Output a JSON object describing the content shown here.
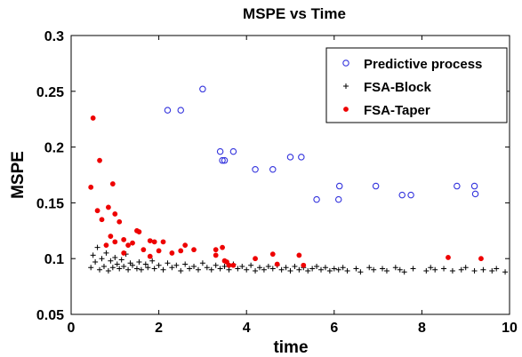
{
  "chart_data": {
    "type": "scatter",
    "title": "MSPE vs Time",
    "xlabel": "time",
    "ylabel": "MSPE",
    "xlim": [
      0,
      10
    ],
    "ylim": [
      0.05,
      0.3
    ],
    "xticks": [
      "0",
      "2",
      "4",
      "6",
      "8",
      "10"
    ],
    "yticks": [
      "0.05",
      "0.1",
      "0.15",
      "0.2",
      "0.25",
      "0.3"
    ],
    "grid": false,
    "legend_position": "top-right",
    "series": [
      {
        "name": "Predictive process",
        "marker": "circle",
        "color": "#3333dd",
        "points": [
          [
            2.2,
            0.233
          ],
          [
            2.5,
            0.233
          ],
          [
            3.0,
            0.252
          ],
          [
            3.4,
            0.196
          ],
          [
            3.45,
            0.188
          ],
          [
            3.5,
            0.188
          ],
          [
            3.7,
            0.196
          ],
          [
            4.2,
            0.18
          ],
          [
            4.6,
            0.18
          ],
          [
            5.0,
            0.191
          ],
          [
            5.25,
            0.191
          ],
          [
            5.6,
            0.153
          ],
          [
            6.1,
            0.153
          ],
          [
            6.12,
            0.165
          ],
          [
            6.95,
            0.165
          ],
          [
            7.55,
            0.157
          ],
          [
            7.75,
            0.157
          ],
          [
            8.8,
            0.165
          ],
          [
            9.2,
            0.165
          ],
          [
            9.22,
            0.158
          ]
        ]
      },
      {
        "name": "FSA-Block",
        "marker": "plus",
        "color": "#000000",
        "points": [
          [
            0.45,
            0.092
          ],
          [
            0.5,
            0.103
          ],
          [
            0.55,
            0.097
          ],
          [
            0.6,
            0.11
          ],
          [
            0.65,
            0.09
          ],
          [
            0.7,
            0.1
          ],
          [
            0.75,
            0.093
          ],
          [
            0.8,
            0.105
          ],
          [
            0.85,
            0.089
          ],
          [
            0.9,
            0.098
          ],
          [
            0.95,
            0.092
          ],
          [
            1.0,
            0.101
          ],
          [
            1.05,
            0.095
          ],
          [
            1.1,
            0.091
          ],
          [
            1.15,
            0.099
          ],
          [
            1.2,
            0.093
          ],
          [
            1.25,
            0.104
          ],
          [
            1.3,
            0.09
          ],
          [
            1.35,
            0.096
          ],
          [
            1.4,
            0.094
          ],
          [
            1.5,
            0.091
          ],
          [
            1.55,
            0.097
          ],
          [
            1.6,
            0.09
          ],
          [
            1.7,
            0.095
          ],
          [
            1.75,
            0.092
          ],
          [
            1.85,
            0.098
          ],
          [
            1.9,
            0.091
          ],
          [
            2.0,
            0.094
          ],
          [
            2.1,
            0.09
          ],
          [
            2.2,
            0.096
          ],
          [
            2.3,
            0.092
          ],
          [
            2.4,
            0.094
          ],
          [
            2.5,
            0.089
          ],
          [
            2.6,
            0.095
          ],
          [
            2.7,
            0.091
          ],
          [
            2.8,
            0.093
          ],
          [
            2.9,
            0.09
          ],
          [
            3.0,
            0.096
          ],
          [
            3.1,
            0.092
          ],
          [
            3.2,
            0.09
          ],
          [
            3.3,
            0.094
          ],
          [
            3.4,
            0.091
          ],
          [
            3.5,
            0.093
          ],
          [
            3.6,
            0.09
          ],
          [
            3.7,
            0.095
          ],
          [
            3.8,
            0.091
          ],
          [
            3.9,
            0.093
          ],
          [
            4.0,
            0.09
          ],
          [
            4.1,
            0.094
          ],
          [
            4.2,
            0.089
          ],
          [
            4.3,
            0.092
          ],
          [
            4.4,
            0.09
          ],
          [
            4.5,
            0.093
          ],
          [
            4.6,
            0.091
          ],
          [
            4.7,
            0.094
          ],
          [
            4.8,
            0.09
          ],
          [
            4.9,
            0.092
          ],
          [
            5.0,
            0.089
          ],
          [
            5.1,
            0.093
          ],
          [
            5.2,
            0.09
          ],
          [
            5.3,
            0.092
          ],
          [
            5.4,
            0.089
          ],
          [
            5.5,
            0.091
          ],
          [
            5.6,
            0.093
          ],
          [
            5.7,
            0.09
          ],
          [
            5.8,
            0.092
          ],
          [
            5.9,
            0.089
          ],
          [
            6.0,
            0.091
          ],
          [
            6.1,
            0.09
          ],
          [
            6.2,
            0.092
          ],
          [
            6.3,
            0.089
          ],
          [
            6.5,
            0.091
          ],
          [
            6.6,
            0.088
          ],
          [
            6.8,
            0.092
          ],
          [
            6.9,
            0.09
          ],
          [
            7.1,
            0.091
          ],
          [
            7.2,
            0.089
          ],
          [
            7.4,
            0.092
          ],
          [
            7.5,
            0.09
          ],
          [
            7.6,
            0.088
          ],
          [
            7.8,
            0.091
          ],
          [
            8.1,
            0.089
          ],
          [
            8.2,
            0.092
          ],
          [
            8.3,
            0.09
          ],
          [
            8.5,
            0.091
          ],
          [
            8.7,
            0.089
          ],
          [
            8.9,
            0.09
          ],
          [
            9.0,
            0.092
          ],
          [
            9.2,
            0.089
          ],
          [
            9.4,
            0.09
          ],
          [
            9.6,
            0.089
          ],
          [
            9.7,
            0.091
          ],
          [
            9.9,
            0.088
          ]
        ]
      },
      {
        "name": "FSA-Taper",
        "marker": "star",
        "color": "#ee0000",
        "points": [
          [
            0.5,
            0.226
          ],
          [
            0.45,
            0.164
          ],
          [
            0.65,
            0.188
          ],
          [
            0.6,
            0.143
          ],
          [
            0.85,
            0.146
          ],
          [
            0.95,
            0.167
          ],
          [
            0.7,
            0.135
          ],
          [
            1.0,
            0.14
          ],
          [
            1.1,
            0.133
          ],
          [
            0.9,
            0.12
          ],
          [
            1.2,
            0.117
          ],
          [
            0.8,
            0.112
          ],
          [
            1.0,
            0.115
          ],
          [
            1.4,
            0.114
          ],
          [
            1.5,
            0.125
          ],
          [
            1.55,
            0.124
          ],
          [
            1.3,
            0.112
          ],
          [
            1.8,
            0.116
          ],
          [
            1.9,
            0.115
          ],
          [
            2.1,
            0.115
          ],
          [
            1.65,
            0.108
          ],
          [
            1.2,
            0.105
          ],
          [
            2.0,
            0.107
          ],
          [
            2.5,
            0.107
          ],
          [
            2.6,
            0.112
          ],
          [
            2.8,
            0.108
          ],
          [
            3.3,
            0.108
          ],
          [
            3.45,
            0.11
          ],
          [
            3.3,
            0.103
          ],
          [
            3.5,
            0.098
          ],
          [
            3.55,
            0.097
          ],
          [
            3.6,
            0.094
          ],
          [
            3.7,
            0.094
          ],
          [
            2.3,
            0.105
          ],
          [
            1.8,
            0.102
          ],
          [
            4.2,
            0.1
          ],
          [
            4.6,
            0.104
          ],
          [
            4.7,
            0.095
          ],
          [
            5.2,
            0.103
          ],
          [
            5.3,
            0.094
          ],
          [
            8.6,
            0.101
          ],
          [
            9.35,
            0.1
          ]
        ]
      }
    ]
  }
}
